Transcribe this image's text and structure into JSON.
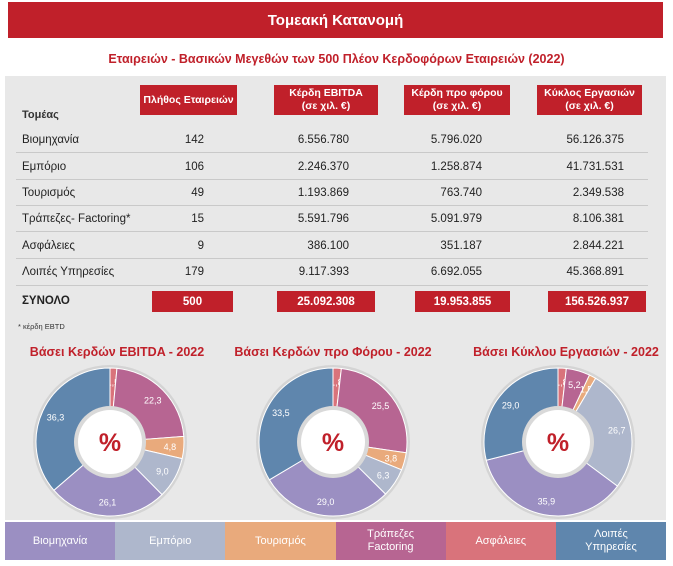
{
  "banner_title": "Τομεακή Κατανομή",
  "subtitle": "Εταιρειών - Βασικών Μεγεθών των 500 Πλέον Κερδοφόρων Εταιρειών  (2022)",
  "table": {
    "sector_header": "Τομέας",
    "col_headers": [
      {
        "line1": "Πλήθος Εταιρειών",
        "line2": ""
      },
      {
        "line1": "Κέρδη EBITDA",
        "line2": "(σε χιλ. €)"
      },
      {
        "line1": "Κέρδη προ φόρου",
        "line2": "(σε χιλ. €)"
      },
      {
        "line1": "Κύκλος Εργασιών",
        "line2": "(σε χιλ. €)"
      }
    ],
    "rows": [
      {
        "sector": "Βιομηχανία",
        "count": "142",
        "ebitda": "6.556.780",
        "pretax": "5.796.020",
        "turnover": "56.126.375"
      },
      {
        "sector": "Εμπόριο",
        "count": "106",
        "ebitda": "2.246.370",
        "pretax": "1.258.874",
        "turnover": "41.731.531"
      },
      {
        "sector": "Τουρισμός",
        "count": "49",
        "ebitda": "1.193.869",
        "pretax": "763.740",
        "turnover": "2.349.538"
      },
      {
        "sector": "Τράπεζες- Factoring*",
        "count": "15",
        "ebitda": "5.591.796",
        "pretax": "5.091.979",
        "turnover": "8.106.381"
      },
      {
        "sector": "Ασφάλειες",
        "count": "9",
        "ebitda": "386.100",
        "pretax": "351.187",
        "turnover": "2.844.221"
      },
      {
        "sector": "Λοιπές Υπηρεσίες",
        "count": "179",
        "ebitda": "9.117.393",
        "pretax": "6.692.055",
        "turnover": "45.368.891"
      }
    ],
    "total": {
      "sector": "ΣΥΝΟΛΟ",
      "count": "500",
      "ebitda": "25.092.308",
      "pretax": "19.953.855",
      "turnover": "156.526.937"
    }
  },
  "footnote": "* κέρδη EBTD",
  "colors": {
    "red": "#c0202a",
    "industry": "#9b8fc2",
    "commerce": "#aeb7cc",
    "tourism": "#e9aa7c",
    "banks": "#b76592",
    "insurance": "#d9737b",
    "other": "#5f86ad"
  },
  "center_label": "%",
  "legend": [
    {
      "label1": "Βιομηχανία",
      "label2": "",
      "color": "#9b8fc2"
    },
    {
      "label1": "Εμπόριο",
      "label2": "",
      "color": "#aeb7cc"
    },
    {
      "label1": "Τουρισμός",
      "label2": "",
      "color": "#e9aa7c"
    },
    {
      "label1": "Τράπεζες",
      "label2": "Factoring",
      "color": "#b76592"
    },
    {
      "label1": "Ασφάλειες",
      "label2": "",
      "color": "#d9737b"
    },
    {
      "label1": "Λοιπές",
      "label2": "Υπηρεσίες",
      "color": "#5f86ad"
    }
  ],
  "chart_data": [
    {
      "type": "pie",
      "title": "Βάσει Κερδών EBITDA - 2022",
      "slices": [
        {
          "name": "Ασφάλειες",
          "value": 1.5,
          "label": "1,5",
          "color": "#d9737b"
        },
        {
          "name": "Τράπεζες Factoring",
          "value": 22.3,
          "label": "22,3",
          "color": "#b76592"
        },
        {
          "name": "Τουρισμός",
          "value": 4.8,
          "label": "4,8",
          "color": "#e9aa7c"
        },
        {
          "name": "Εμπόριο",
          "value": 9.0,
          "label": "9,0",
          "color": "#aeb7cc"
        },
        {
          "name": "Βιομηχανία",
          "value": 26.1,
          "label": "26,1",
          "color": "#9b8fc2"
        },
        {
          "name": "Λοιπές Υπηρεσίες",
          "value": 36.3,
          "label": "36,3",
          "color": "#5f86ad"
        }
      ]
    },
    {
      "type": "pie",
      "title": "Βάσει Κερδών προ Φόρου - 2022",
      "slices": [
        {
          "name": "Ασφάλειες",
          "value": 1.8,
          "label": "1,8",
          "color": "#d9737b"
        },
        {
          "name": "Τράπεζες Factoring",
          "value": 25.5,
          "label": "25,5",
          "color": "#b76592"
        },
        {
          "name": "Τουρισμός",
          "value": 3.8,
          "label": "3,8",
          "color": "#e9aa7c"
        },
        {
          "name": "Εμπόριο",
          "value": 6.3,
          "label": "6,3",
          "color": "#aeb7cc"
        },
        {
          "name": "Βιομηχανία",
          "value": 29.0,
          "label": "29,0",
          "color": "#9b8fc2"
        },
        {
          "name": "Λοιπές Υπηρεσίες",
          "value": 33.5,
          "label": "33,5",
          "color": "#5f86ad"
        }
      ]
    },
    {
      "type": "pie",
      "title": "Βάσει Κύκλου Εργασιών - 2022",
      "slices": [
        {
          "name": "Ασφάλειες",
          "value": 1.8,
          "label": "1,8",
          "color": "#d9737b"
        },
        {
          "name": "Τράπεζες Factoring",
          "value": 5.2,
          "label": "5,2",
          "color": "#b76592"
        },
        {
          "name": "Τουρισμός",
          "value": 1.5,
          "label": "1,5",
          "color": "#e9aa7c"
        },
        {
          "name": "Εμπόριο",
          "value": 26.7,
          "label": "26,7",
          "color": "#aeb7cc"
        },
        {
          "name": "Βιομηχανία",
          "value": 35.9,
          "label": "35,9",
          "color": "#9b8fc2"
        },
        {
          "name": "Λοιπές Υπηρεσίες",
          "value": 29.0,
          "label": "29,0",
          "color": "#5f86ad"
        }
      ]
    }
  ]
}
